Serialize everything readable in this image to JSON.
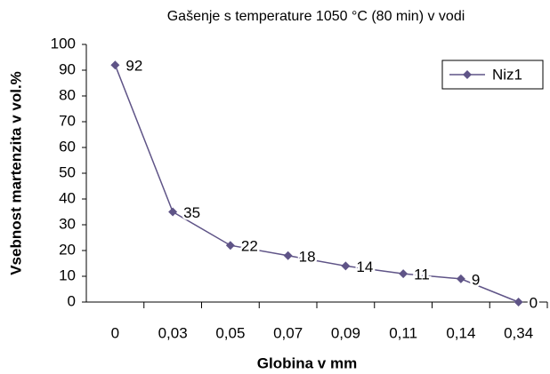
{
  "chart_data": {
    "type": "line",
    "title": "Gašenje s temperature 1050 °C (80 min) v vodi",
    "x_label": "Globina v mm",
    "y_label": "Vsebnost martenzita v vol.%",
    "categories": [
      "0",
      "0,03",
      "0,05",
      "0,07",
      "0,09",
      "0,11",
      "0,14",
      "0,34"
    ],
    "series": [
      {
        "name": "Niz1",
        "color": "#5f5487",
        "values": [
          92,
          35,
          22,
          18,
          14,
          11,
          9,
          0
        ]
      }
    ],
    "ylim": [
      0,
      100
    ],
    "yticks": [
      0,
      10,
      20,
      30,
      40,
      50,
      60,
      70,
      80,
      90,
      100
    ],
    "grid": false,
    "legend": "upper right",
    "data_labels": true
  }
}
